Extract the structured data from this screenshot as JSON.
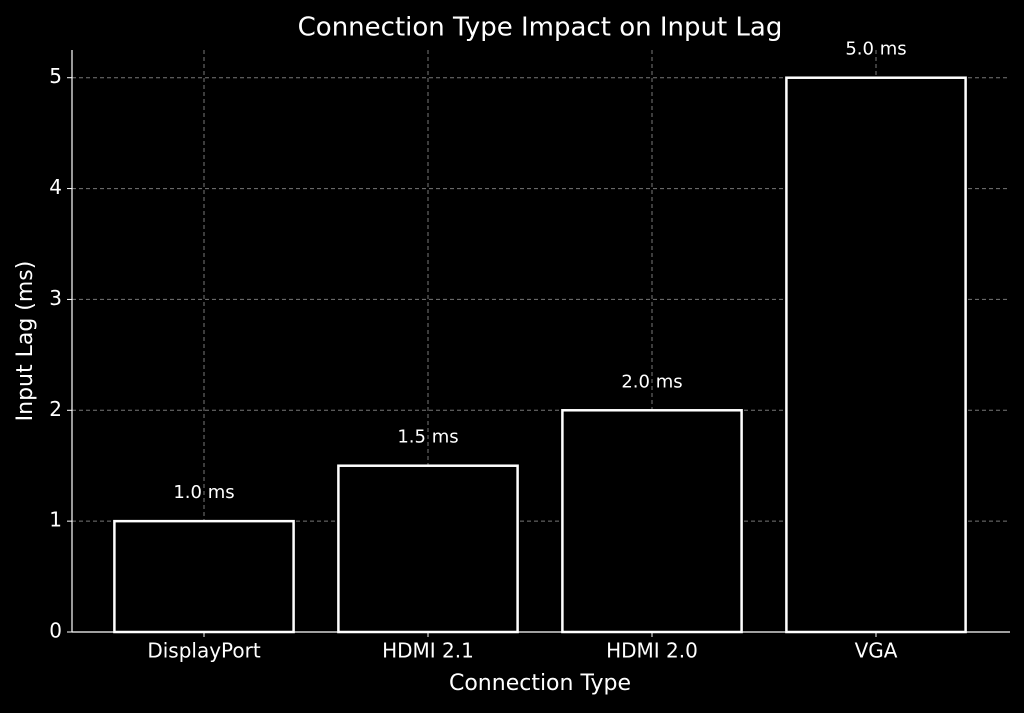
{
  "chart_data": {
    "type": "bar",
    "title": "Connection Type Impact on Input Lag",
    "x_label": "Connection Type",
    "y_label": "Input Lag (ms)",
    "categories": [
      "DisplayPort",
      "HDMI 2.1",
      "HDMI 2.0",
      "VGA"
    ],
    "values": [
      1.0,
      1.5,
      2.0,
      5.0
    ],
    "value_labels": [
      "1.0 ms",
      "1.5 ms",
      "2.0 ms",
      "5.0 ms"
    ],
    "color": "#ffffff",
    "ylim": [
      0,
      5.25
    ],
    "yticks": [
      0,
      1,
      2,
      3,
      4,
      5
    ],
    "grid": true
  }
}
